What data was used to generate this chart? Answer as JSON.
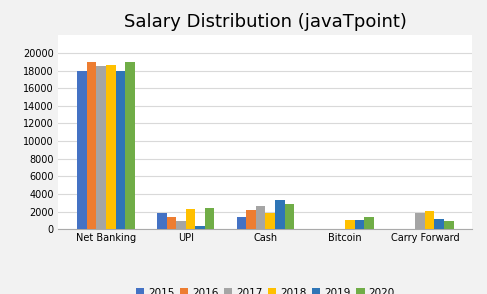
{
  "title": "Salary Distribution (javaTpoint)",
  "categories": [
    "Net Banking",
    "UPI",
    "Cash",
    "Bitcoin",
    "Carry Forward"
  ],
  "years": [
    "2015",
    "2016",
    "2017",
    "2018",
    "2019",
    "2020"
  ],
  "values": {
    "Net Banking": [
      18000,
      19000,
      18500,
      18600,
      18000,
      19000
    ],
    "UPI": [
      1900,
      1350,
      1000,
      2300,
      400,
      2450
    ],
    "Cash": [
      1400,
      2200,
      2650,
      1900,
      3300,
      2900
    ],
    "Bitcoin": [
      0,
      0,
      0,
      1100,
      1100,
      1400
    ],
    "Carry Forward": [
      0,
      0,
      1900,
      2050,
      1150,
      900
    ]
  },
  "colors": [
    "#4472C4",
    "#ED7D31",
    "#A5A5A5",
    "#FFC000",
    "#4472C4",
    "#70AD47"
  ],
  "colors6": [
    "#4472C4",
    "#ED7D31",
    "#A5A5A5",
    "#FFC000",
    "#2E75B6",
    "#70AD47"
  ],
  "ylim": [
    0,
    22000
  ],
  "yticks": [
    0,
    2000,
    4000,
    6000,
    8000,
    10000,
    12000,
    14000,
    16000,
    18000,
    20000
  ],
  "bg_outer": "#F2F2F2",
  "bg_plot": "#FFFFFF",
  "grid_color": "#D9D9D9",
  "title_fontsize": 13,
  "legend_fontsize": 7.5,
  "tick_fontsize": 7,
  "bar_width": 0.12
}
